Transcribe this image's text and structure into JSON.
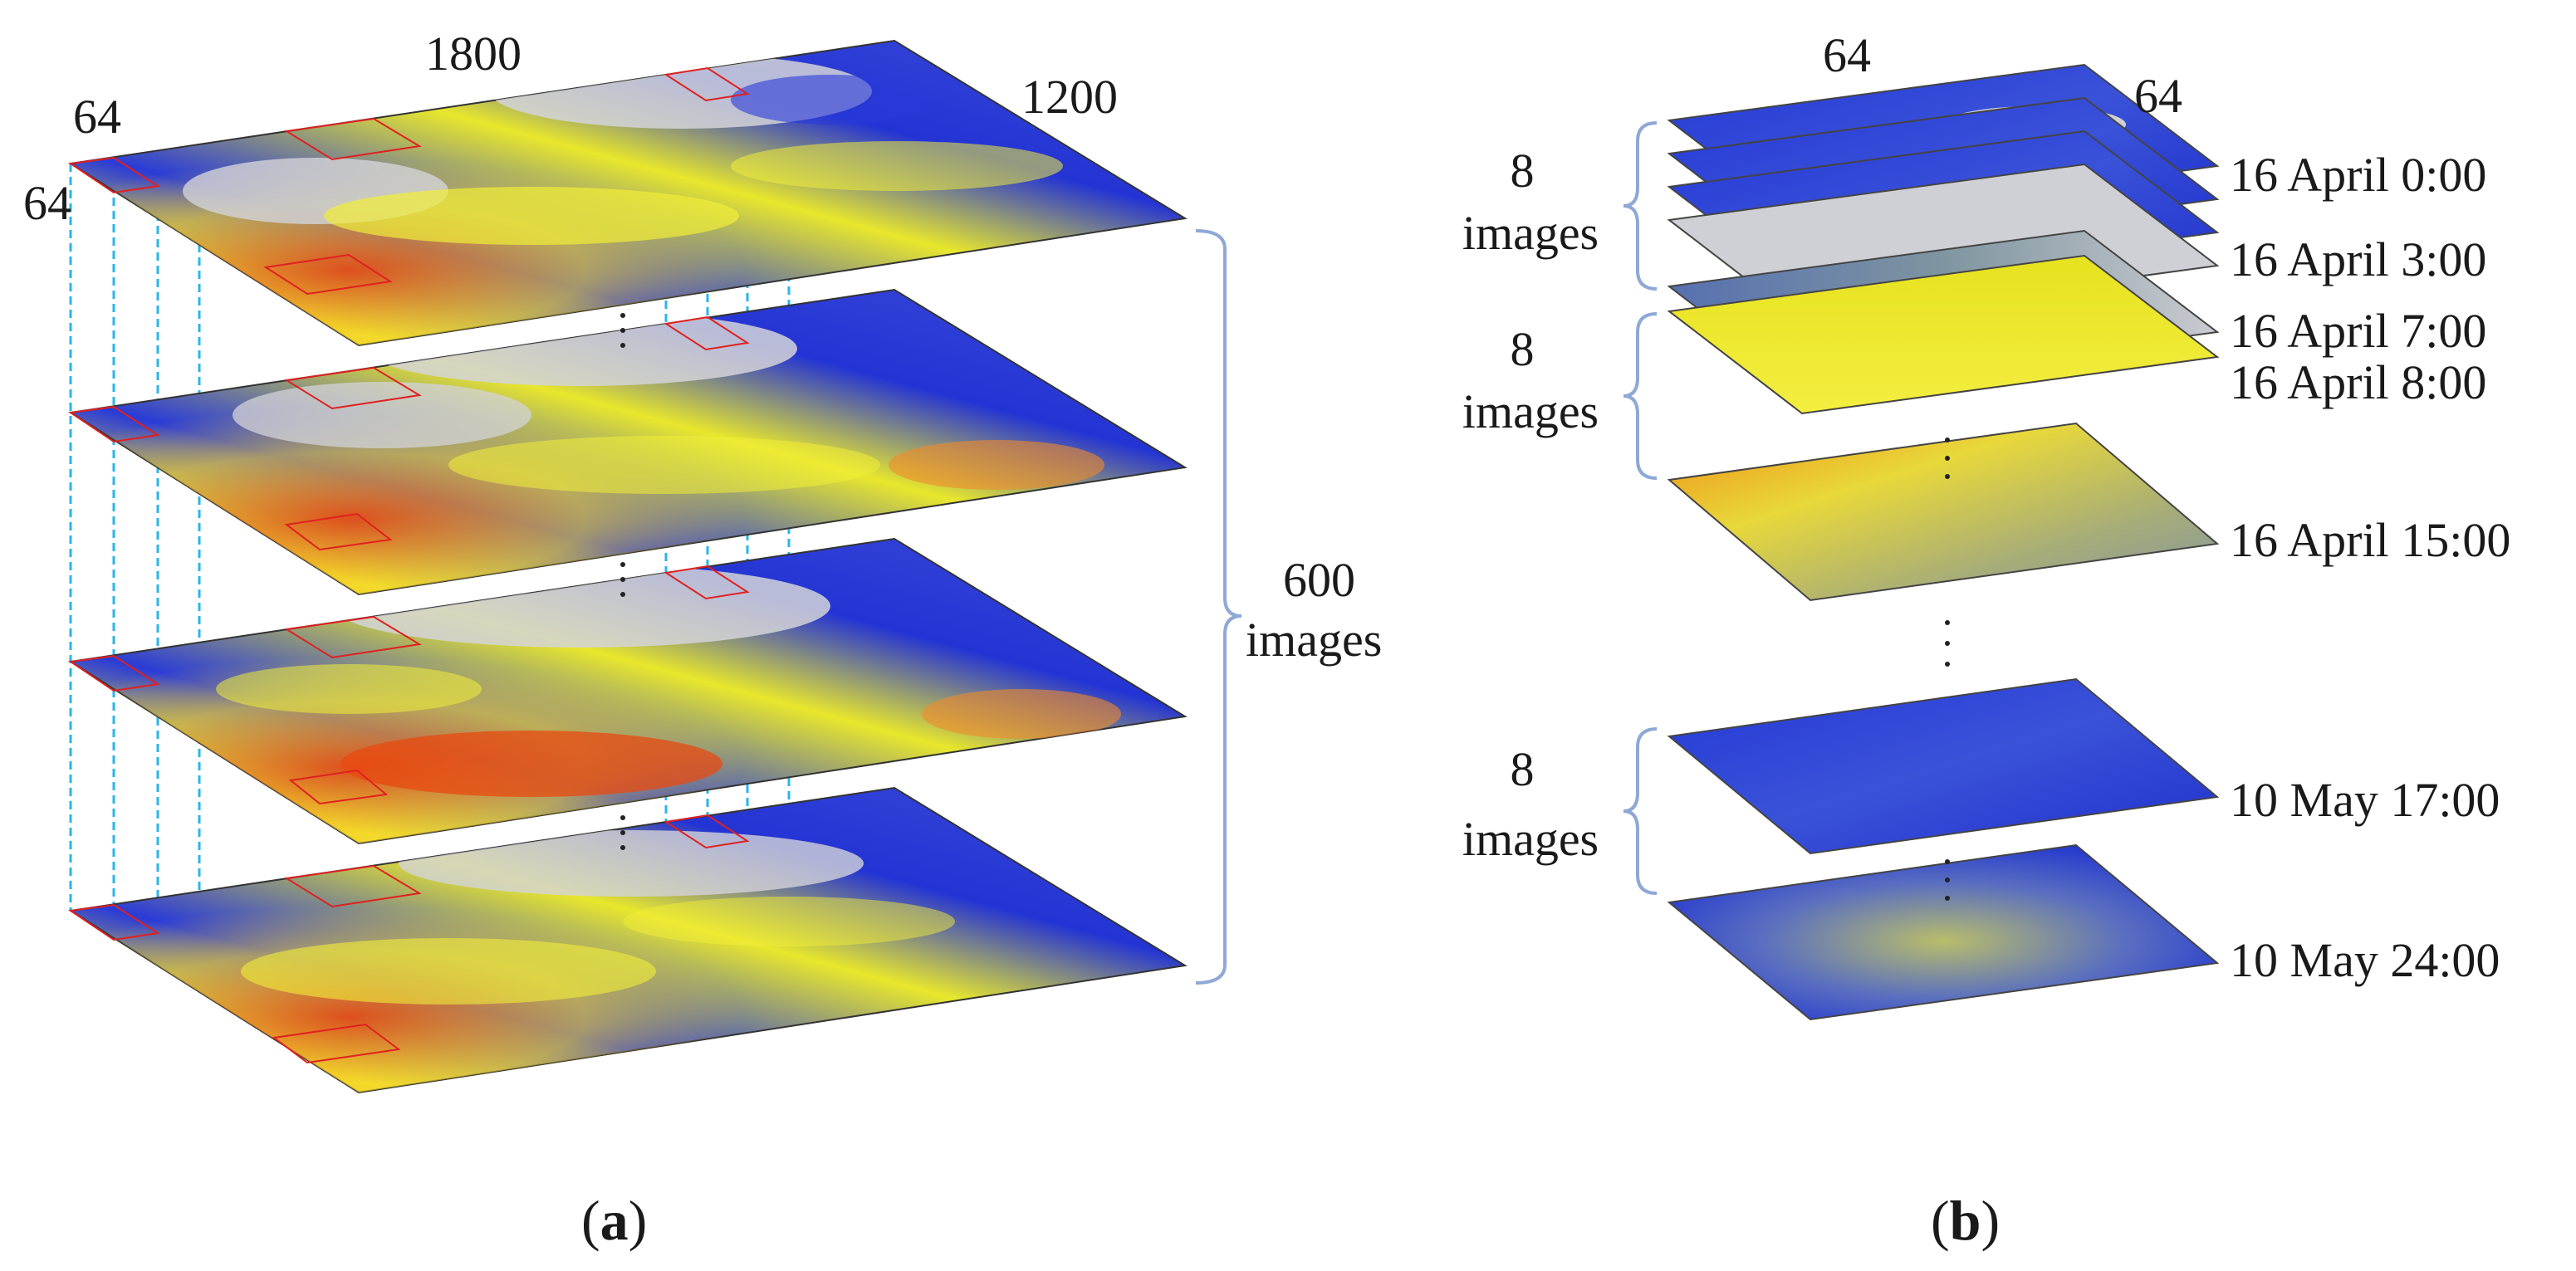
{
  "panel_a": {
    "dim_width": "1800",
    "dim_depth": "1200",
    "dim_tile_top": "64",
    "dim_tile_side": "64",
    "stack_count": "600",
    "stack_unit": "images",
    "caption_letter": "a"
  },
  "panel_b": {
    "dim_top": "64",
    "dim_side": "64",
    "groups": [
      {
        "count": "8",
        "unit": "images"
      },
      {
        "count": "8",
        "unit": "images"
      },
      {
        "count": "8",
        "unit": "images"
      }
    ],
    "times": [
      "16 April 0:00",
      "16 April 3:00",
      "16 April 7:00",
      "16 April 8:00",
      "16 April 15:00",
      "10 May 17:00",
      "10 May 24:00"
    ],
    "caption_letter": "b"
  },
  "colors": {
    "low": "#1f2fd6",
    "mid": "#f1f12a",
    "high": "#e84a10",
    "land": "#d2d2d6",
    "grid_line": "#29b6e8",
    "patch_outline": "#e02020",
    "bracket": "#8fa8d6"
  }
}
